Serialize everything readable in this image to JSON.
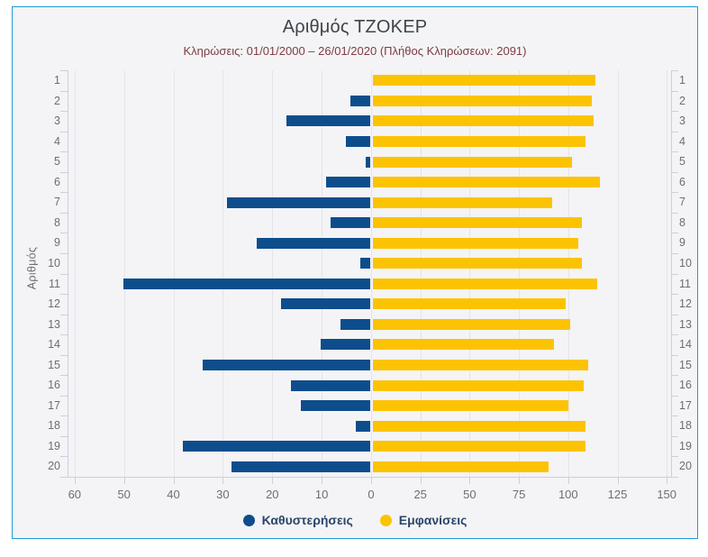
{
  "colors": {
    "frame_border": "#1f9cd9",
    "panel_background": "#f4f4f6",
    "title_text": "#3f434a",
    "subtitle_text": "#7c3d43",
    "axis_text": "#6b6e73",
    "legend_text": "#2a4569",
    "delay_bar": "#0e4d8c",
    "appearance_bar": "#fcc303"
  },
  "chart_data": {
    "type": "bar",
    "orientation": "horizontal-diverging",
    "title": "Αριθμός ΤΖΟΚΕΡ",
    "subtitle": "Κληρώσεις: 01/01/2000 – 26/01/2020 (Πλήθος Κληρώσεων: 2091)",
    "ylabel": "Αριθμός",
    "categories": [
      "1",
      "2",
      "3",
      "4",
      "5",
      "6",
      "7",
      "8",
      "9",
      "10",
      "11",
      "12",
      "13",
      "14",
      "15",
      "16",
      "17",
      "18",
      "19",
      "20"
    ],
    "series": [
      {
        "name": "Καθυστερήσεις",
        "color": "#0e4d8c",
        "direction": "left",
        "axis_max": 60,
        "values": [
          0,
          4,
          17,
          5,
          1,
          9,
          29,
          8,
          23,
          2,
          50,
          18,
          6,
          10,
          34,
          16,
          14,
          3,
          38,
          28
        ]
      },
      {
        "name": "Εμφανίσεις",
        "color": "#fcc303",
        "direction": "right",
        "axis_max": 150,
        "values": [
          113,
          111,
          112,
          108,
          101,
          115,
          91,
          106,
          104,
          106,
          114,
          98,
          100,
          92,
          109,
          107,
          99,
          108,
          108,
          89
        ]
      }
    ],
    "x_ticks_left": [
      60,
      50,
      40,
      30,
      20,
      10
    ],
    "x_tick_zero": 0,
    "x_ticks_right": [
      25,
      50,
      75,
      100,
      125,
      150
    ],
    "grid": true,
    "legend_position": "bottom",
    "draw_count": 2091
  }
}
